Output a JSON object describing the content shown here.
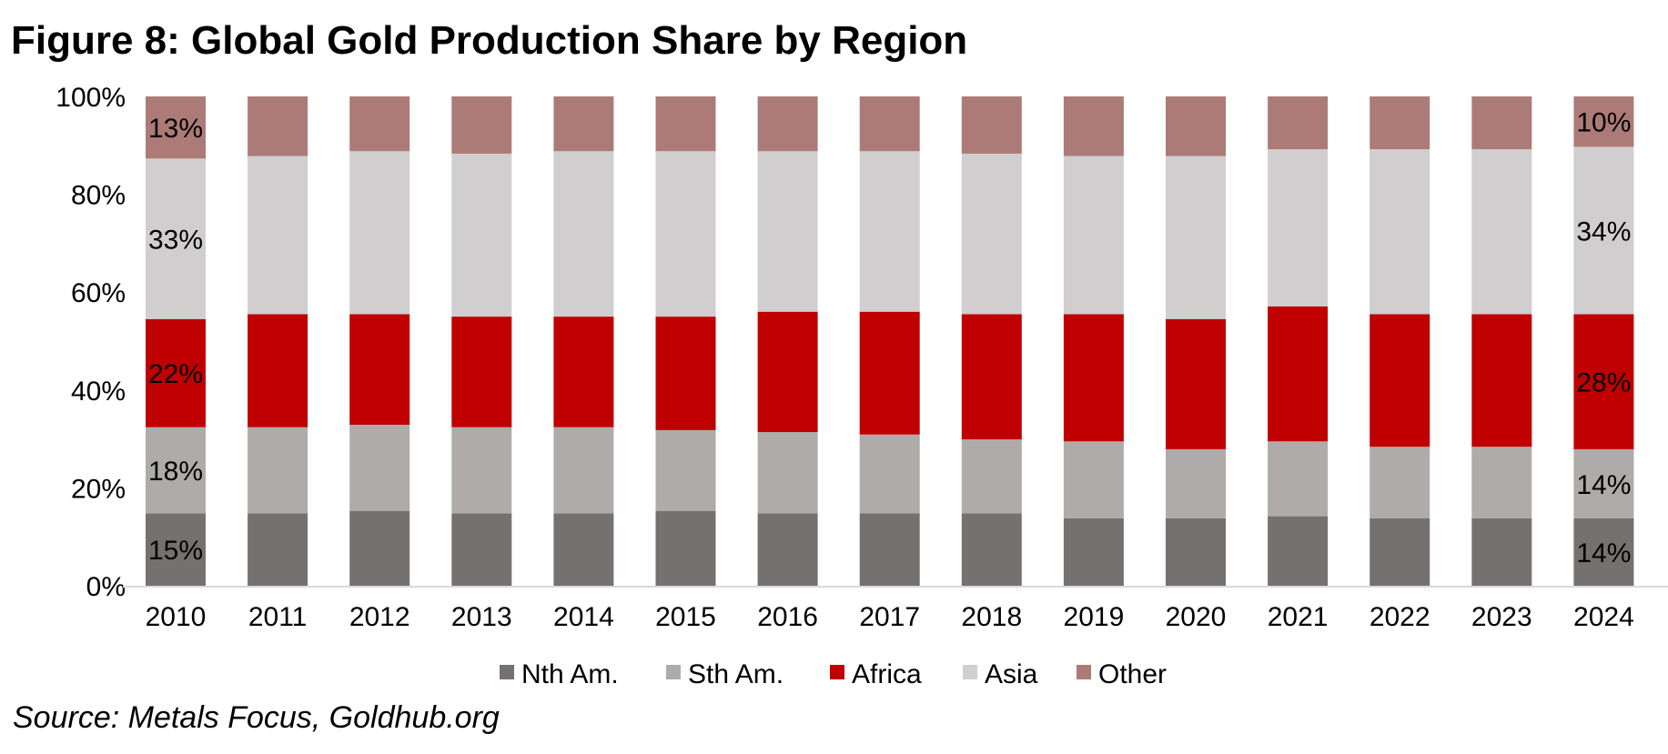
{
  "chart_data": {
    "type": "bar",
    "stacked": true,
    "title": "Figure 8: Global Gold Production Share by Region",
    "source": "Source: Metals Focus, Goldhub.org",
    "xlabel": "",
    "ylabel": "",
    "ylim": [
      0,
      100
    ],
    "y_ticks": [
      "0%",
      "20%",
      "40%",
      "60%",
      "80%",
      "100%"
    ],
    "categories": [
      "2010",
      "2011",
      "2012",
      "2013",
      "2014",
      "2015",
      "2016",
      "2017",
      "2018",
      "2019",
      "2020",
      "2021",
      "2022",
      "2023",
      "2024"
    ],
    "legend_position": "bottom",
    "series": [
      {
        "name": "Nth Am.",
        "color": "#767171",
        "values": [
          14.8,
          14.8,
          15.3,
          14.8,
          14.8,
          15.3,
          14.8,
          14.8,
          14.8,
          13.8,
          13.8,
          14.2,
          13.8,
          13.8,
          13.8
        ],
        "labels": {
          "0": "15%",
          "14": "14%"
        }
      },
      {
        "name": "Sth Am.",
        "color": "#AFABAB",
        "values": [
          17.6,
          17.6,
          17.6,
          17.6,
          17.6,
          16.5,
          16.6,
          16.1,
          15.1,
          15.7,
          14.1,
          15.3,
          14.6,
          14.6,
          14.1
        ],
        "labels": {
          "0": "18%",
          "14": "14%"
        }
      },
      {
        "name": "Africa",
        "color": "#C00000",
        "values": [
          22.1,
          23.1,
          22.6,
          22.6,
          22.6,
          23.2,
          24.6,
          25.1,
          25.6,
          26.0,
          26.6,
          27.6,
          27.1,
          27.1,
          27.6
        ],
        "labels": {
          "0": "22%",
          "14": "28%"
        }
      },
      {
        "name": "Asia",
        "color": "#D0CECE",
        "values": [
          32.8,
          32.3,
          33.3,
          33.3,
          33.8,
          33.8,
          32.8,
          32.8,
          32.8,
          32.3,
          33.3,
          32.1,
          33.7,
          33.7,
          34.2
        ],
        "labels": {
          "0": "33%",
          "14": "34%"
        }
      },
      {
        "name": "Other",
        "color": "#AD7B77",
        "values": [
          12.7,
          12.2,
          11.2,
          11.7,
          11.2,
          11.2,
          11.2,
          11.2,
          11.7,
          12.2,
          12.2,
          10.8,
          10.8,
          10.8,
          10.3
        ],
        "labels": {
          "0": "13%",
          "14": "10%"
        }
      }
    ]
  }
}
